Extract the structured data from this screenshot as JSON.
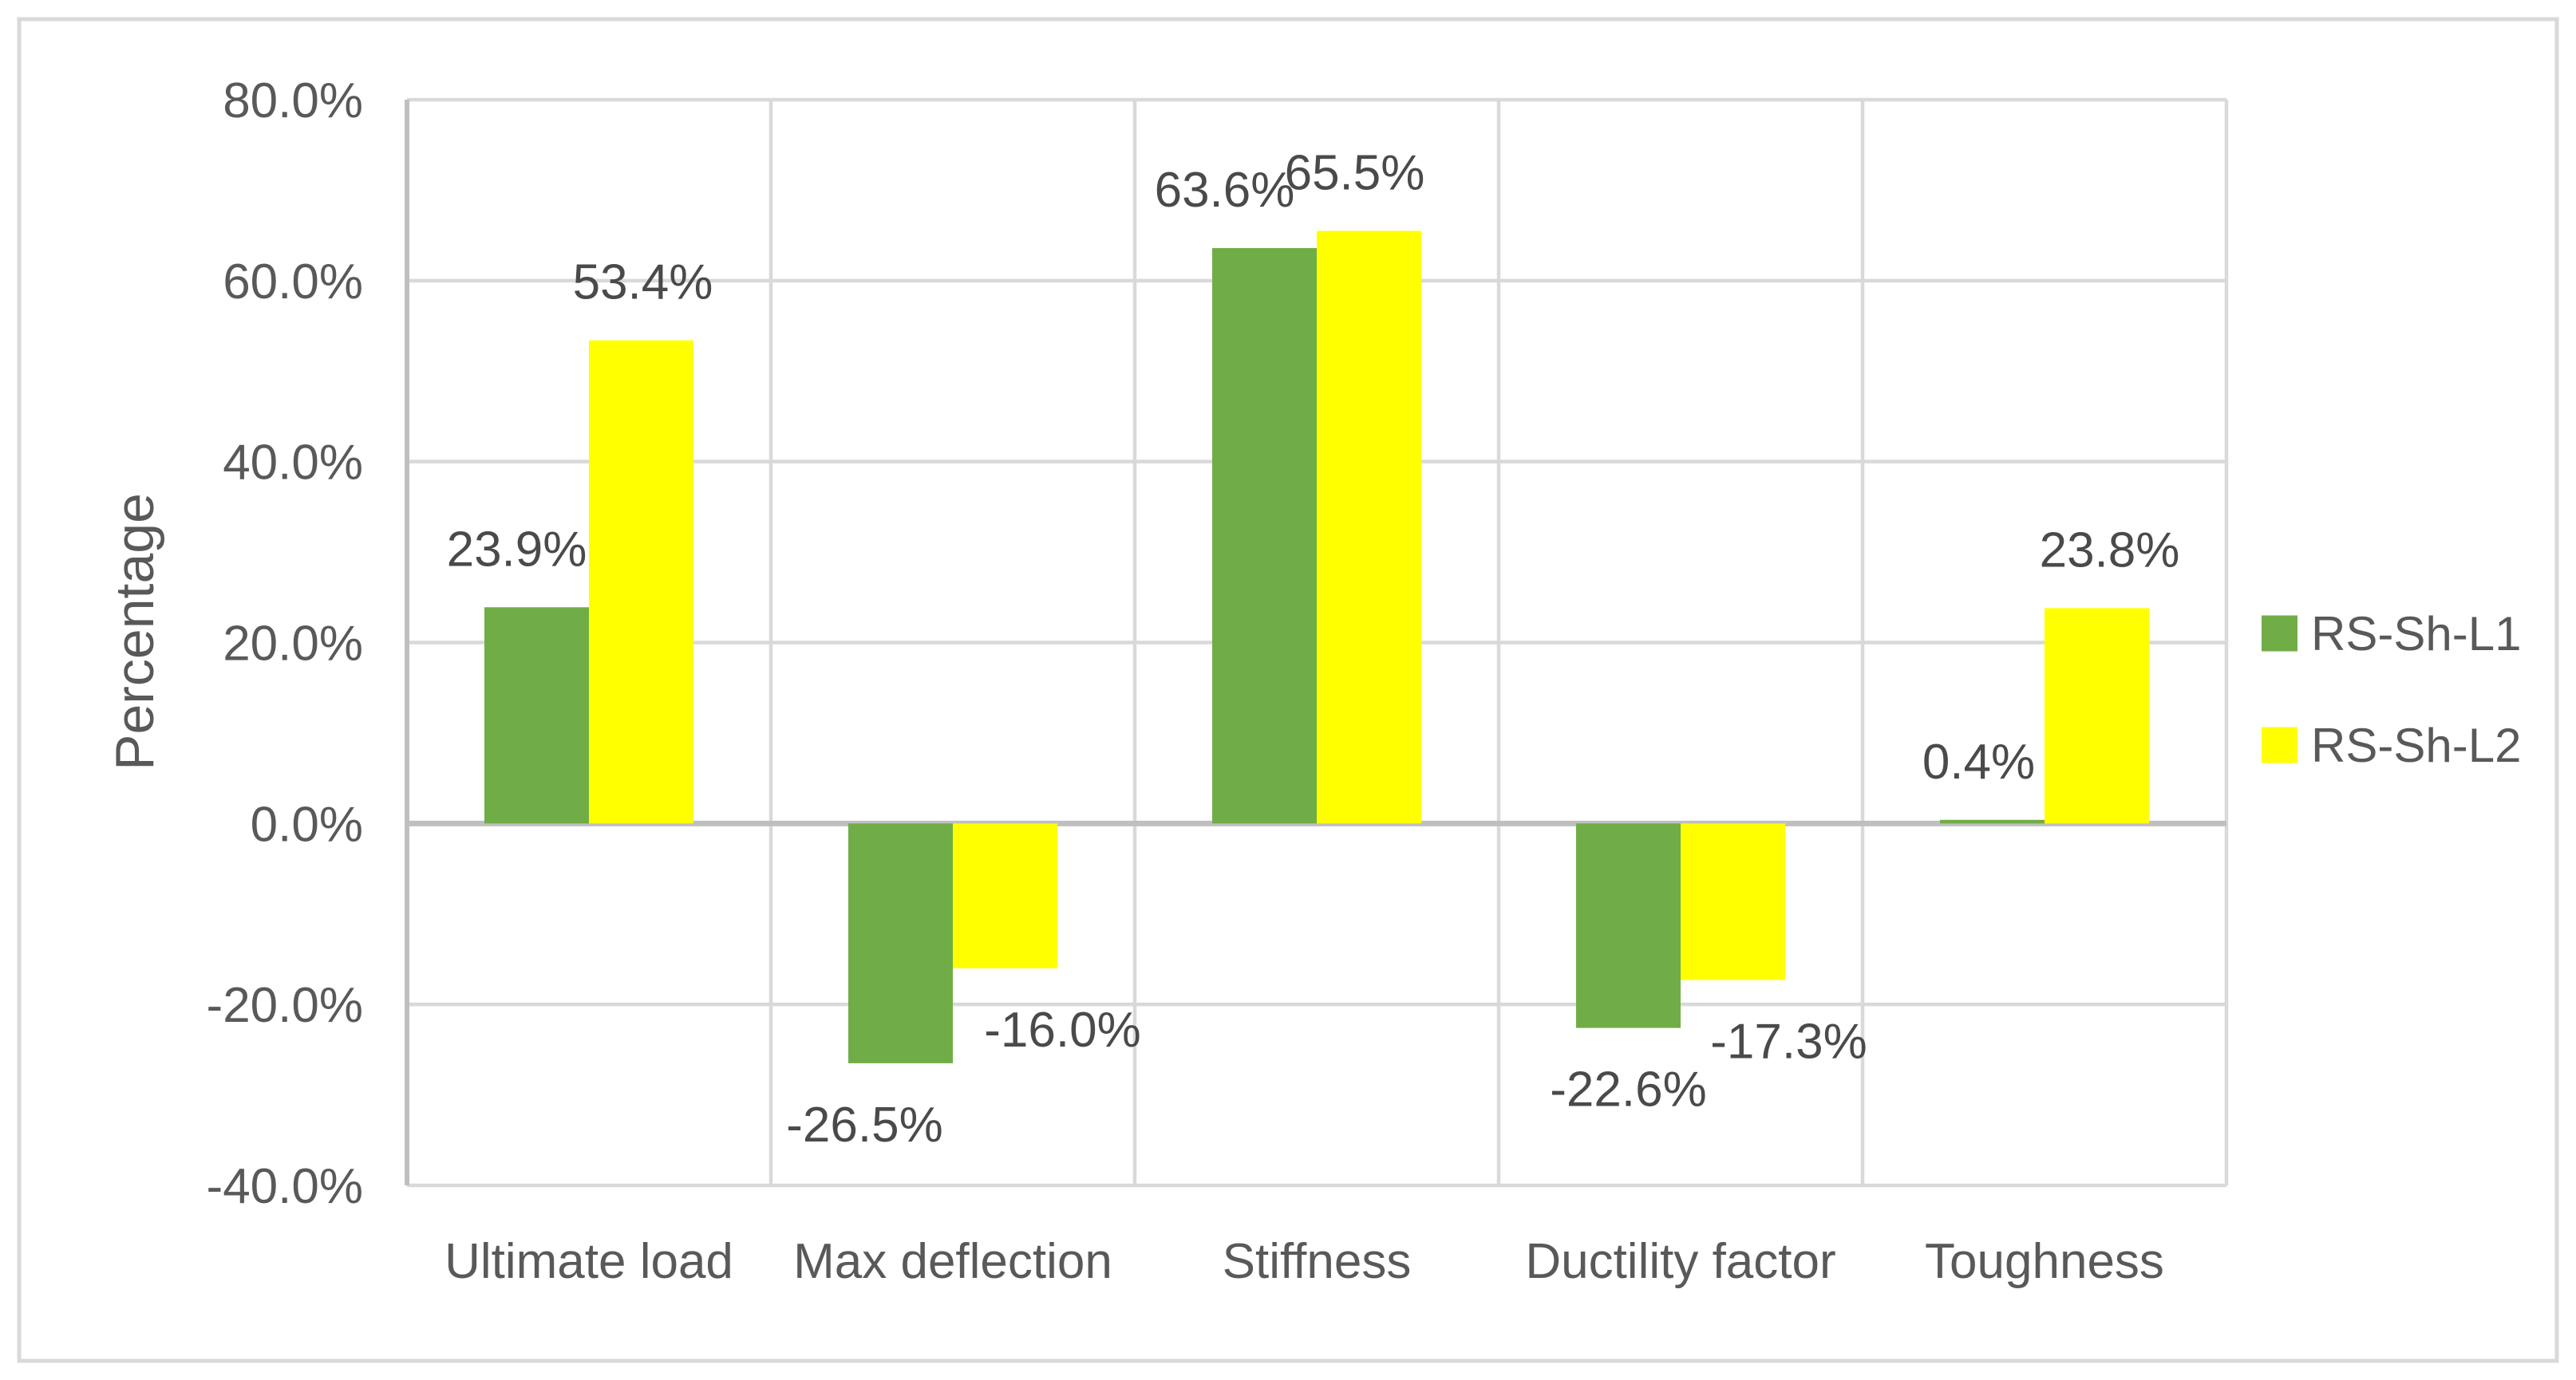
{
  "chart_data": {
    "type": "bar",
    "title": "",
    "ylabel": "Percentage",
    "xlabel": "",
    "categories": [
      "Ultimate load",
      "Max deflection",
      "Stiffness",
      "Ductility factor",
      "Toughness"
    ],
    "series": [
      {
        "name": "RS-Sh-L1",
        "color": "#70AD47",
        "values": [
          23.9,
          -26.5,
          63.6,
          -22.6,
          0.4
        ],
        "labels": [
          "23.9%",
          "-26.5%",
          "63.6%",
          "-22.6%",
          "0.4%"
        ]
      },
      {
        "name": "RS-Sh-L2",
        "color": "#FFFF00",
        "values": [
          53.4,
          -16.0,
          65.5,
          -17.3,
          23.8
        ],
        "labels": [
          "53.4%",
          "-16.0%",
          "65.5%",
          "-17.3%",
          "23.8%"
        ]
      }
    ],
    "y_axis": {
      "min": -40,
      "max": 80,
      "step": 20,
      "tick_labels": [
        "80.0%",
        "60.0%",
        "40.0%",
        "20.0%",
        "0.0%",
        "-20.0%",
        "-40.0%"
      ]
    },
    "legend_position": "right",
    "grid": true,
    "colors": {
      "gridline": "#D9D9D9",
      "axis_line": "#BFBFBF",
      "outer_border": "#D9D9D9",
      "axis_text": "#595959",
      "data_label_text": "#4A4A4A",
      "background": "#FFFFFF"
    }
  }
}
